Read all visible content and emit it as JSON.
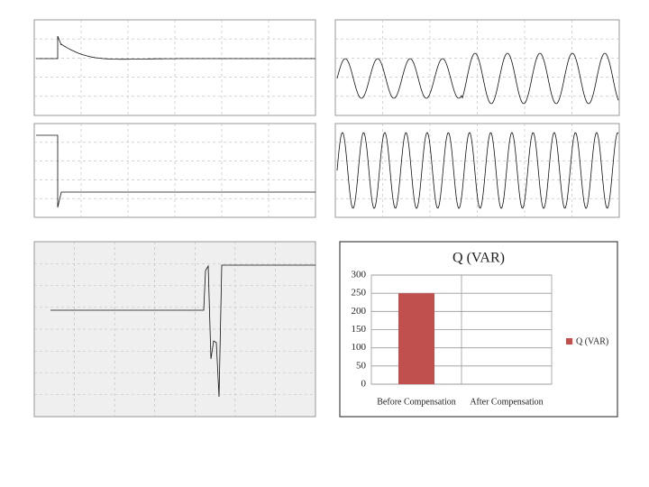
{
  "chart_data": {
    "type": "bar",
    "title": "Q (VAR)",
    "categories": [
      "Before Compensation",
      "After Compensation"
    ],
    "series": [
      {
        "name": "Q (VAR)",
        "color": "#c0504d",
        "values": [
          250,
          0
        ]
      }
    ],
    "ylim": [
      0,
      300
    ],
    "yticks": [
      0,
      50,
      100,
      150,
      200,
      250,
      300
    ],
    "grid": true,
    "legend": "right"
  }
}
